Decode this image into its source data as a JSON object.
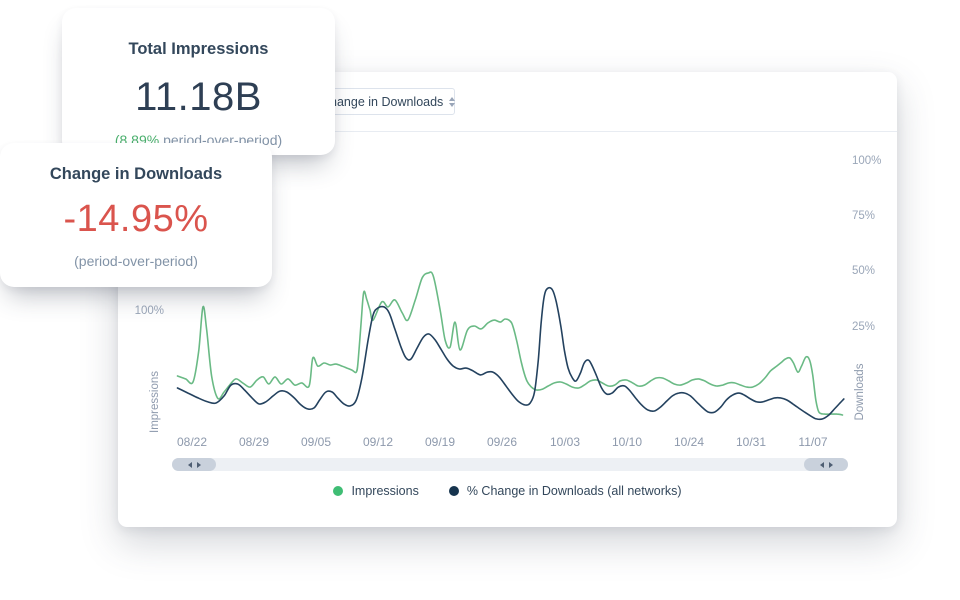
{
  "colors": {
    "text_dark": "#33475b",
    "value_dark": "#2e3f54",
    "accent_green": "#4aaf6d",
    "negative_red": "#da544d",
    "muted_gray": "#8293a7",
    "axis_gray": "#9aa6b8"
  },
  "cards": {
    "impressions": {
      "title": "Total Impressions",
      "value": "11.18B",
      "delta_green": "(8.89%",
      "delta_rest": " period-over-period)"
    },
    "downloads": {
      "title": "Change in Downloads",
      "value": "-14.95%",
      "subtext": "(period-over-period)"
    }
  },
  "chart": {
    "dropdown": {
      "value": "Change in Downloads"
    },
    "left_axis": {
      "tick": "100%",
      "label": "Impressions"
    },
    "right_axis": {
      "ticks": [
        "100%",
        "75%",
        "50%",
        "25%"
      ],
      "label": "Downloads"
    },
    "x_ticks": [
      "08/22",
      "08/29",
      "09/05",
      "09/12",
      "09/19",
      "09/26",
      "10/03",
      "10/10",
      "10/24",
      "10/31",
      "11/07"
    ],
    "legend": [
      {
        "label": "Impressions"
      },
      {
        "label": "% Change in Downloads (all networks)"
      }
    ]
  },
  "chart_data": {
    "type": "line",
    "title": "",
    "xlabel": "date (weekly ticks, x in weeks since 08/22)",
    "ylabel": "percent (right Downloads axis scale)",
    "x_tick_labels": [
      "08/22",
      "08/29",
      "09/05",
      "09/12",
      "09/19",
      "09/26",
      "10/03",
      "10/10",
      "10/24",
      "10/31",
      "11/07"
    ],
    "x_range_weeks": [
      -0.27,
      10.52
    ],
    "right_axis_percent_ticks": [
      25,
      50,
      75,
      100
    ],
    "left_axis_visible_tick": "100% (Impressions scale, aligns to ~32% on right axis)",
    "grid": false,
    "legend_position": "bottom-center",
    "series": [
      {
        "name": "Impressions",
        "color": "#6aba85",
        "points": [
          [
            -0.23,
            3.6
          ],
          [
            -0.1,
            2.3
          ],
          [
            0.02,
            0.9
          ],
          [
            0.11,
            14.5
          ],
          [
            0.18,
            34.8
          ],
          [
            0.24,
            24.4
          ],
          [
            0.32,
            3.6
          ],
          [
            0.42,
            -6.5
          ],
          [
            0.52,
            -3.6
          ],
          [
            0.61,
            -0.5
          ],
          [
            0.71,
            2.3
          ],
          [
            0.82,
            0.5
          ],
          [
            0.94,
            -1.4
          ],
          [
            1.05,
            1.8
          ],
          [
            1.15,
            3.2
          ],
          [
            1.24,
            0.0
          ],
          [
            1.34,
            3.2
          ],
          [
            1.44,
            0.0
          ],
          [
            1.55,
            2.3
          ],
          [
            1.66,
            -0.5
          ],
          [
            1.77,
            0.5
          ],
          [
            1.89,
            -0.9
          ],
          [
            1.95,
            11.8
          ],
          [
            2.03,
            8.1
          ],
          [
            2.13,
            9.5
          ],
          [
            2.23,
            8.6
          ],
          [
            2.32,
            9.0
          ],
          [
            2.42,
            8.1
          ],
          [
            2.5,
            7.2
          ],
          [
            2.58,
            6.3
          ],
          [
            2.65,
            5.4
          ],
          [
            2.68,
            10.8
          ],
          [
            2.73,
            28.9
          ],
          [
            2.77,
            41.6
          ],
          [
            2.82,
            38.0
          ],
          [
            2.87,
            33.5
          ],
          [
            2.92,
            28.9
          ],
          [
            3.06,
            37.1
          ],
          [
            3.16,
            34.8
          ],
          [
            3.27,
            38.0
          ],
          [
            3.39,
            32.1
          ],
          [
            3.48,
            28.9
          ],
          [
            3.6,
            38.0
          ],
          [
            3.71,
            47.9
          ],
          [
            3.81,
            50.2
          ],
          [
            3.89,
            48.8
          ],
          [
            4.0,
            33.5
          ],
          [
            4.08,
            19.9
          ],
          [
            4.16,
            16.7
          ],
          [
            4.24,
            28.0
          ],
          [
            4.32,
            15.4
          ],
          [
            4.44,
            24.4
          ],
          [
            4.55,
            26.2
          ],
          [
            4.66,
            24.9
          ],
          [
            4.77,
            27.6
          ],
          [
            4.87,
            28.9
          ],
          [
            4.97,
            28.0
          ],
          [
            5.05,
            29.4
          ],
          [
            5.15,
            27.6
          ],
          [
            5.23,
            19.9
          ],
          [
            5.31,
            9.5
          ],
          [
            5.39,
            1.8
          ],
          [
            5.47,
            -1.4
          ],
          [
            5.55,
            -2.7
          ],
          [
            5.65,
            -2.3
          ],
          [
            5.74,
            -0.9
          ],
          [
            5.84,
            0.5
          ],
          [
            5.94,
            0.9
          ],
          [
            6.03,
            0.0
          ],
          [
            6.13,
            -1.4
          ],
          [
            6.23,
            -1.8
          ],
          [
            6.32,
            -0.5
          ],
          [
            6.42,
            1.4
          ],
          [
            6.52,
            1.8
          ],
          [
            6.61,
            0.5
          ],
          [
            6.71,
            -0.9
          ],
          [
            6.81,
            -0.5
          ],
          [
            6.9,
            1.4
          ],
          [
            7.0,
            1.8
          ],
          [
            7.1,
            0.5
          ],
          [
            7.19,
            -0.9
          ],
          [
            7.29,
            -0.5
          ],
          [
            7.39,
            1.4
          ],
          [
            7.48,
            2.7
          ],
          [
            7.58,
            2.7
          ],
          [
            7.68,
            1.4
          ],
          [
            7.77,
            0.0
          ],
          [
            7.87,
            -0.5
          ],
          [
            7.97,
            0.5
          ],
          [
            8.06,
            1.8
          ],
          [
            8.16,
            2.3
          ],
          [
            8.26,
            1.4
          ],
          [
            8.35,
            0.0
          ],
          [
            8.45,
            -0.9
          ],
          [
            8.55,
            -0.5
          ],
          [
            8.65,
            0.5
          ],
          [
            8.74,
            0.5
          ],
          [
            8.84,
            -0.5
          ],
          [
            8.94,
            -1.4
          ],
          [
            9.03,
            -1.4
          ],
          [
            9.13,
            0.0
          ],
          [
            9.23,
            2.7
          ],
          [
            9.32,
            5.9
          ],
          [
            9.42,
            8.1
          ],
          [
            9.5,
            9.9
          ],
          [
            9.56,
            11.3
          ],
          [
            9.63,
            11.8
          ],
          [
            9.69,
            9.5
          ],
          [
            9.76,
            5.4
          ],
          [
            9.82,
            8.1
          ],
          [
            9.89,
            12.2
          ],
          [
            9.95,
            10.8
          ],
          [
            10.0,
            4.1
          ],
          [
            10.05,
            -7.2
          ],
          [
            10.1,
            -12.7
          ],
          [
            10.19,
            -13.6
          ],
          [
            10.29,
            -13.6
          ],
          [
            10.39,
            -13.6
          ],
          [
            10.48,
            -14.0
          ]
        ]
      },
      {
        "name": "% Change in Downloads (all networks)",
        "color": "#24425f",
        "points": [
          [
            -0.23,
            -1.8
          ],
          [
            -0.06,
            -4.1
          ],
          [
            0.1,
            -6.3
          ],
          [
            0.26,
            -8.1
          ],
          [
            0.39,
            -8.6
          ],
          [
            0.52,
            -5.4
          ],
          [
            0.63,
            -0.5
          ],
          [
            0.74,
            0.0
          ],
          [
            0.85,
            -2.7
          ],
          [
            0.97,
            -6.3
          ],
          [
            1.08,
            -9.0
          ],
          [
            1.19,
            -8.1
          ],
          [
            1.31,
            -5.4
          ],
          [
            1.42,
            -3.2
          ],
          [
            1.53,
            -3.6
          ],
          [
            1.65,
            -6.3
          ],
          [
            1.76,
            -9.5
          ],
          [
            1.87,
            -11.3
          ],
          [
            1.97,
            -10.8
          ],
          [
            2.06,
            -7.2
          ],
          [
            2.16,
            -3.6
          ],
          [
            2.26,
            -3.6
          ],
          [
            2.35,
            -6.3
          ],
          [
            2.45,
            -9.0
          ],
          [
            2.55,
            -9.9
          ],
          [
            2.65,
            -7.2
          ],
          [
            2.74,
            2.7
          ],
          [
            2.84,
            19.9
          ],
          [
            2.92,
            31.2
          ],
          [
            3.0,
            34.4
          ],
          [
            3.1,
            34.8
          ],
          [
            3.18,
            32.1
          ],
          [
            3.27,
            24.9
          ],
          [
            3.37,
            16.7
          ],
          [
            3.45,
            11.8
          ],
          [
            3.53,
            11.3
          ],
          [
            3.63,
            16.3
          ],
          [
            3.73,
            21.2
          ],
          [
            3.82,
            22.6
          ],
          [
            3.92,
            19.9
          ],
          [
            4.02,
            15.4
          ],
          [
            4.11,
            11.3
          ],
          [
            4.21,
            8.1
          ],
          [
            4.31,
            6.8
          ],
          [
            4.42,
            7.2
          ],
          [
            4.53,
            5.9
          ],
          [
            4.65,
            4.1
          ],
          [
            4.76,
            5.4
          ],
          [
            4.85,
            5.4
          ],
          [
            4.95,
            3.2
          ],
          [
            5.06,
            -0.9
          ],
          [
            5.18,
            -5.4
          ],
          [
            5.27,
            -8.1
          ],
          [
            5.37,
            -9.5
          ],
          [
            5.45,
            -8.6
          ],
          [
            5.52,
            -3.6
          ],
          [
            5.58,
            10.8
          ],
          [
            5.63,
            28.9
          ],
          [
            5.68,
            40.2
          ],
          [
            5.74,
            43.4
          ],
          [
            5.81,
            42.5
          ],
          [
            5.87,
            37.1
          ],
          [
            5.94,
            26.7
          ],
          [
            6.0,
            15.4
          ],
          [
            6.06,
            7.2
          ],
          [
            6.13,
            2.7
          ],
          [
            6.19,
            1.4
          ],
          [
            6.26,
            5.0
          ],
          [
            6.32,
            9.5
          ],
          [
            6.39,
            10.8
          ],
          [
            6.45,
            8.1
          ],
          [
            6.52,
            3.6
          ],
          [
            6.6,
            -1.8
          ],
          [
            6.68,
            -4.5
          ],
          [
            6.77,
            -4.1
          ],
          [
            6.87,
            -1.4
          ],
          [
            6.97,
            -0.9
          ],
          [
            7.06,
            -3.2
          ],
          [
            7.16,
            -6.8
          ],
          [
            7.26,
            -9.9
          ],
          [
            7.35,
            -11.8
          ],
          [
            7.45,
            -12.2
          ],
          [
            7.55,
            -10.4
          ],
          [
            7.65,
            -7.7
          ],
          [
            7.74,
            -5.4
          ],
          [
            7.84,
            -4.1
          ],
          [
            7.94,
            -4.1
          ],
          [
            8.03,
            -5.4
          ],
          [
            8.13,
            -8.1
          ],
          [
            8.23,
            -10.8
          ],
          [
            8.32,
            -12.7
          ],
          [
            8.42,
            -12.7
          ],
          [
            8.52,
            -10.4
          ],
          [
            8.61,
            -7.2
          ],
          [
            8.71,
            -5.0
          ],
          [
            8.81,
            -4.1
          ],
          [
            8.9,
            -5.0
          ],
          [
            9.0,
            -6.8
          ],
          [
            9.1,
            -8.1
          ],
          [
            9.19,
            -8.1
          ],
          [
            9.29,
            -7.2
          ],
          [
            9.39,
            -6.3
          ],
          [
            9.48,
            -6.3
          ],
          [
            9.58,
            -7.2
          ],
          [
            9.68,
            -9.0
          ],
          [
            9.77,
            -10.8
          ],
          [
            9.87,
            -12.7
          ],
          [
            9.97,
            -14.5
          ],
          [
            10.06,
            -15.8
          ],
          [
            10.16,
            -15.8
          ],
          [
            10.26,
            -14.0
          ],
          [
            10.35,
            -11.3
          ],
          [
            10.44,
            -8.6
          ],
          [
            10.5,
            -6.8
          ]
        ]
      }
    ]
  }
}
